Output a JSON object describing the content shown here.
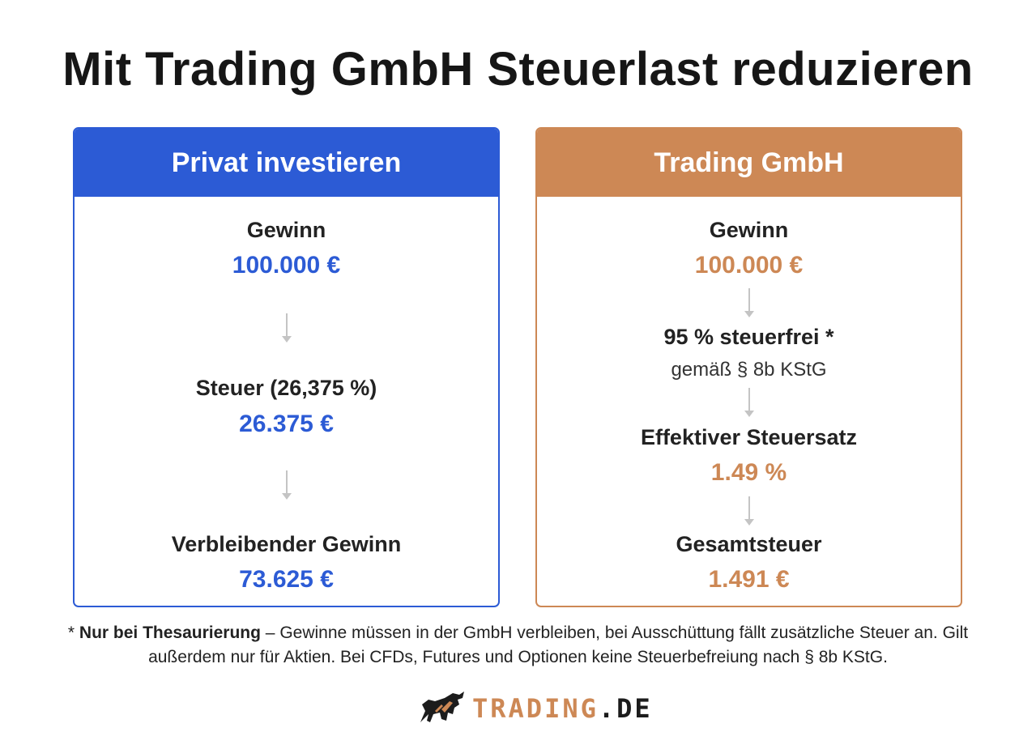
{
  "title": "Mit Trading GmbH Steuerlast reduzieren",
  "colors": {
    "private_accent": "#2c5bd5",
    "gmbh_accent": "#cd8855"
  },
  "private": {
    "header": "Privat investieren",
    "steps": [
      {
        "label": "Gewinn",
        "value": "100.000 €"
      },
      {
        "label": "Steuer (26,375 %)",
        "value": "26.375 €"
      },
      {
        "label": "Verbleibender Gewinn",
        "value": "73.625 €"
      }
    ]
  },
  "gmbh": {
    "header": "Trading GmbH",
    "steps": [
      {
        "label": "Gewinn",
        "value": "100.000 €"
      },
      {
        "label": "95 % steuerfrei *",
        "sub": "gemäß § 8b KStG"
      },
      {
        "label": "Effektiver Steuersatz",
        "value": "1.49 %"
      },
      {
        "label": "Gesamtsteuer",
        "value": "1.491 €"
      }
    ]
  },
  "footnote": {
    "prefix": "* ",
    "bold": "Nur bei Thesaurierung",
    "text": " – Gewinne müssen in der GmbH verbleiben, bei Ausschüttung fällt zusätzliche Steuer an. Gilt außerdem nur für Aktien. Bei CFDs, Futures und Optionen keine Steuerbefreiung nach § 8b KStG."
  },
  "logo": {
    "part1": "TRADING",
    "part2": ".DE",
    "icon": "bull-icon"
  }
}
